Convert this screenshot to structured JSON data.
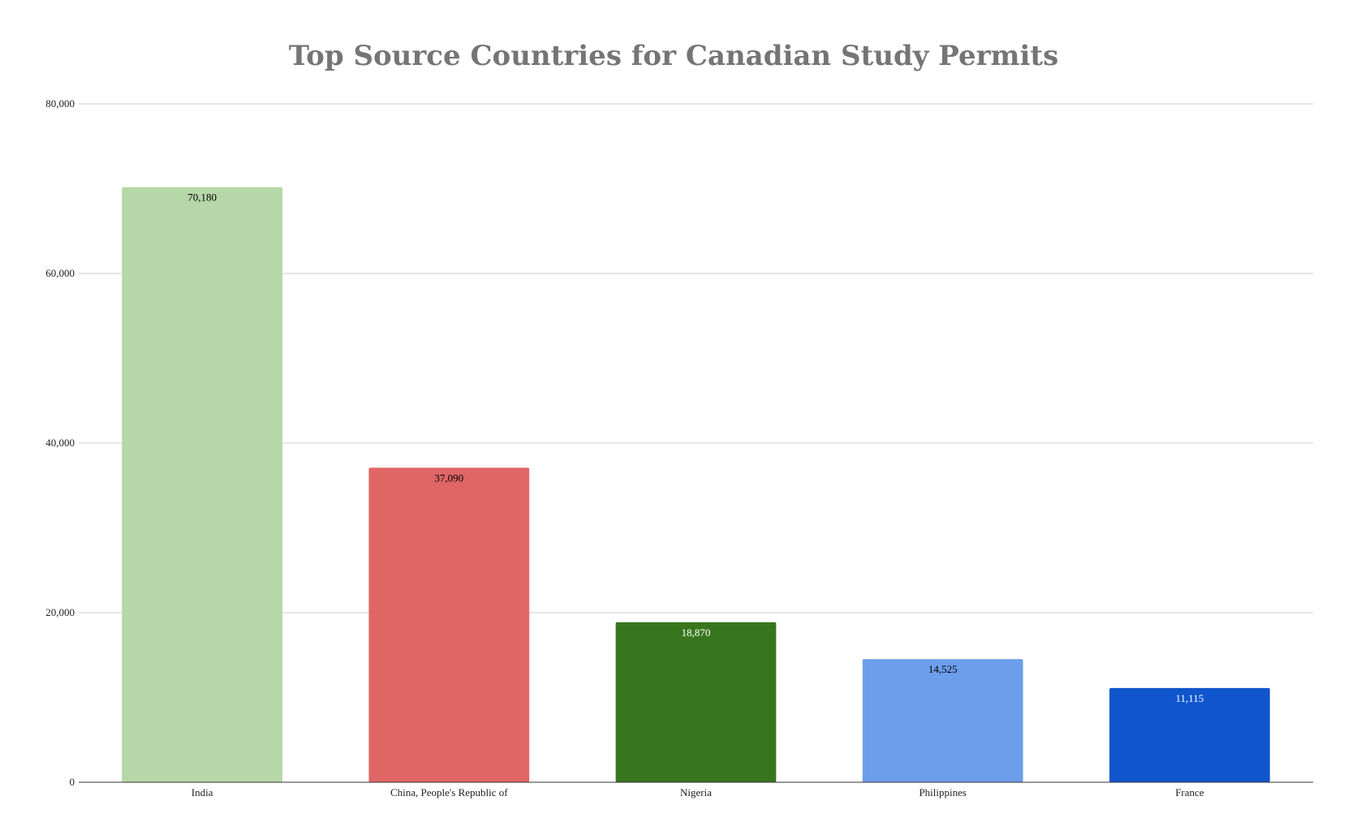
{
  "chart_data": {
    "type": "bar",
    "title": "Top Source Countries for Canadian Study Permits",
    "xlabel": "",
    "ylabel": "",
    "categories": [
      "India",
      "China, People's Republic of",
      "Nigeria",
      "Philippines",
      "France"
    ],
    "values": [
      70180,
      37090,
      18870,
      14525,
      11115
    ],
    "data_labels": [
      "70,180",
      "37,090",
      "18,870",
      "14,525",
      "11,115"
    ],
    "bar_colors": [
      "#b6d7a8",
      "#e06666",
      "#38761d",
      "#6d9eeb",
      "#1155cc"
    ],
    "label_colors": [
      "#000000",
      "#000000",
      "#ffffff",
      "#000000",
      "#ffffff"
    ],
    "ylim": [
      0,
      80000
    ],
    "yticks": [
      0,
      20000,
      40000,
      60000,
      80000
    ],
    "ytick_labels": [
      "0",
      "20,000",
      "40,000",
      "60,000",
      "80,000"
    ],
    "grid": true,
    "legend": "none"
  }
}
